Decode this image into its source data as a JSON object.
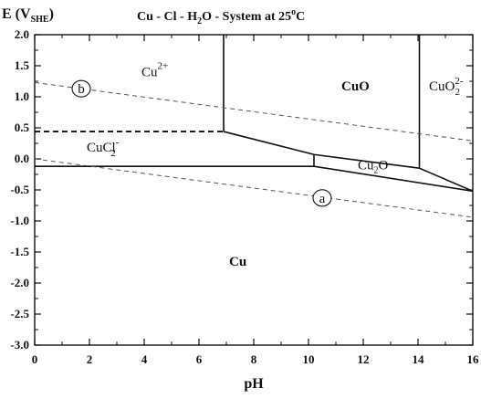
{
  "chart_data": {
    "type": "line",
    "title": "Cu - Cl - H2O - System at 25°C",
    "xlabel": "pH",
    "ylabel": "E (VSHE)",
    "xlim": [
      0,
      16
    ],
    "ylim": [
      -3.0,
      2.0
    ],
    "xticks": [
      "0",
      "2",
      "4",
      "6",
      "8",
      "10",
      "12",
      "14",
      "16"
    ],
    "yticks": [
      "2.0",
      "1.5",
      "1.0",
      "0.5",
      "0.0",
      "-0.5",
      "-1.0",
      "-1.5",
      "-2.0",
      "-2.5",
      "-3.0"
    ],
    "boundaries": [
      {
        "x": [
          0,
          10.2
        ],
        "y": [
          -0.12,
          -0.12
        ],
        "style": "solid"
      },
      {
        "x": [
          10.2,
          16
        ],
        "y": [
          -0.12,
          -0.52
        ],
        "style": "solid"
      },
      {
        "x": [
          6.9,
          6.9
        ],
        "y": [
          2.0,
          0.44
        ],
        "style": "solid"
      },
      {
        "x": [
          6.9,
          10.2
        ],
        "y": [
          0.44,
          0.07
        ],
        "style": "solid"
      },
      {
        "x": [
          10.2,
          10.2
        ],
        "y": [
          0.07,
          -0.12
        ],
        "style": "solid"
      },
      {
        "x": [
          10.2,
          14.05
        ],
        "y": [
          0.07,
          -0.15
        ],
        "style": "solid"
      },
      {
        "x": [
          14.05,
          14.05
        ],
        "y": [
          2.0,
          -0.15
        ],
        "style": "solid"
      },
      {
        "x": [
          14.05,
          16
        ],
        "y": [
          -0.15,
          -0.52
        ],
        "style": "solid"
      },
      {
        "x": [
          0,
          6.9
        ],
        "y": [
          0.44,
          0.44
        ],
        "style": "dashed"
      },
      {
        "x": [
          0,
          16
        ],
        "y": [
          1.23,
          0.29
        ],
        "style": "dashed",
        "name": "b"
      },
      {
        "x": [
          0,
          16
        ],
        "y": [
          0.0,
          -0.94
        ],
        "style": "dashed",
        "name": "a"
      }
    ],
    "region_labels": [
      {
        "text": "Cu",
        "sup": "2+",
        "x": 3.9,
        "y": 1.33
      },
      {
        "text": "CuO",
        "x": 11.2,
        "y": 1.1,
        "bold": true
      },
      {
        "text": "CuO",
        "sup": "2-",
        "sub": "2",
        "x": 14.4,
        "y": 1.1
      },
      {
        "text": "CuCl",
        "sup": "-",
        "sub": "2",
        "x": 1.9,
        "y": 0.12
      },
      {
        "text": "Cu",
        "sub": "2",
        "text2": "O",
        "x": 11.8,
        "y": -0.17
      },
      {
        "text": "Cu",
        "x": 7.1,
        "y": -1.72,
        "bold": true
      }
    ],
    "line_markers": [
      {
        "text": "b",
        "x": 1.7,
        "y": 1.13
      },
      {
        "text": "a",
        "x": 10.5,
        "y": -0.63
      }
    ]
  },
  "title_parts": {
    "pre": "Cu - Cl - H",
    "sub": "2",
    "mid": "O - System at 25",
    "deg": "o",
    "post": "C"
  },
  "ylabel_parts": {
    "pre": "E (V",
    "sub": "SHE",
    "post": ")"
  }
}
